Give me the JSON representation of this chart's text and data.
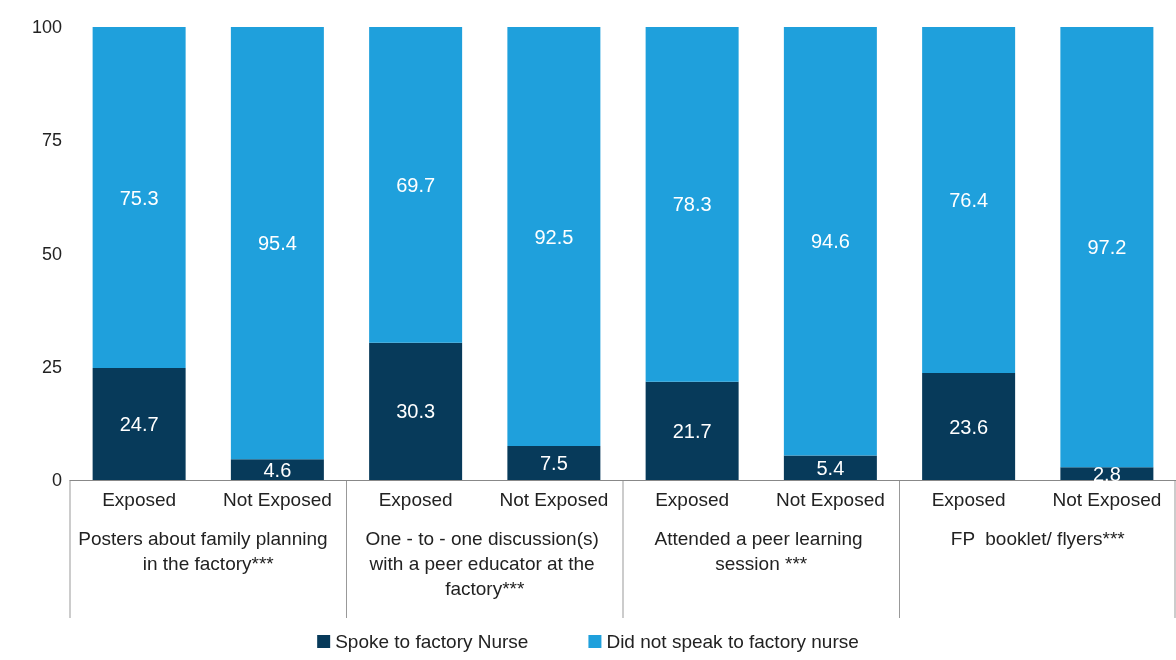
{
  "chart_data": {
    "type": "bar",
    "stacked": true,
    "data_labels": true,
    "legend": "bottom",
    "grid": false,
    "categories": [
      "Exposed",
      "Not Exposed",
      "Exposed",
      "Not Exposed",
      "Exposed",
      "Not Exposed",
      "Exposed",
      "Not Exposed"
    ],
    "series": [
      {
        "name": "Spoke to factory Nurse",
        "color": "#073a5a",
        "values": [
          24.7,
          4.6,
          30.3,
          7.5,
          21.7,
          5.4,
          23.6,
          2.8
        ]
      },
      {
        "name": "Did not speak to factory nurse",
        "color": "#1fa0dc",
        "values": [
          75.3,
          95.4,
          69.7,
          92.5,
          78.3,
          94.6,
          76.4,
          97.2
        ]
      }
    ],
    "ylim": [
      0,
      100
    ],
    "yticks": [
      0,
      25,
      50,
      75,
      100
    ],
    "annotations": [
      "Posters about family planning  in the factory***",
      "One - to - one discussion(s) with a peer educator at the factory***",
      "Attended a peer learning session ***",
      "FP  booklet/ flyers***"
    ]
  }
}
